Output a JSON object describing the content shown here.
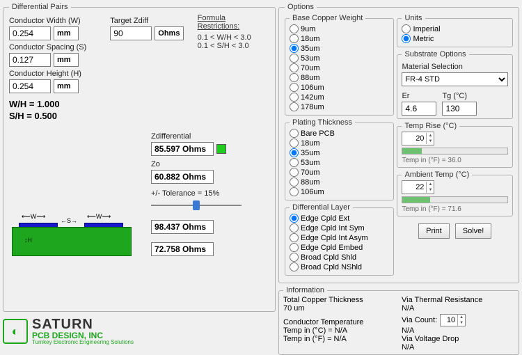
{
  "colors": {
    "indicator_ok": "#1fcc1f",
    "trace": "#1818c8",
    "substrate": "#1fa61f"
  },
  "diffpairs": {
    "legend": "Differential Pairs",
    "conductor_width": {
      "label": "Conductor Width (W)",
      "value": "0.254",
      "unit": "mm"
    },
    "target_zdiff": {
      "label": "Target Zdiff",
      "value": "90",
      "unit": "Ohms"
    },
    "conductor_spacing": {
      "label": "Conductor Spacing (S)",
      "value": "0.127",
      "unit": "mm"
    },
    "conductor_height": {
      "label": "Conductor Height (H)",
      "value": "0.254",
      "unit": "mm"
    },
    "wh_label": "W/H = 1.000",
    "sh_label": "S/H =  0.500",
    "restrictions": {
      "title": "Formula Restrictions:",
      "l1": "0.1 < W/H < 3.0",
      "l2": "0.1 < S/H < 3.0"
    },
    "zdiff": {
      "label": "Zdifferential",
      "value": "85.597 Ohms"
    },
    "zo": {
      "label": "Zo",
      "value": "60.882 Ohms"
    },
    "tol": {
      "label": "+/- Tolerance = 15%",
      "slider_pct": 50
    },
    "tol_hi": "98.437 Ohms",
    "tol_lo": "72.758 Ohms",
    "diagram_labels": {
      "w": "W",
      "s": "S",
      "h": "H"
    }
  },
  "options": {
    "legend": "Options",
    "bcw": {
      "legend": "Base Copper Weight",
      "items": [
        "9um",
        "18um",
        "35um",
        "53um",
        "70um",
        "88um",
        "106um",
        "142um",
        "178um"
      ],
      "selected": 2
    },
    "plating": {
      "legend": "Plating Thickness",
      "items": [
        "Bare PCB",
        "18um",
        "35um",
        "53um",
        "70um",
        "88um",
        "106um"
      ],
      "selected": 2
    },
    "dlayer": {
      "legend": "Differential Layer",
      "items": [
        "Edge Cpld Ext",
        "Edge Cpld Int Sym",
        "Edge Cpld Int Asym",
        "Edge Cpld Embed",
        "Broad Cpld Shld",
        "Broad Cpld NShld"
      ],
      "selected": 0
    },
    "units": {
      "legend": "Units",
      "items": [
        "Imperial",
        "Metric"
      ],
      "selected": 1
    },
    "substrate": {
      "legend": "Substrate Options",
      "mat_label": "Material Selection",
      "mat_value": "FR-4 STD",
      "er_label": "Er",
      "er_value": "4.6",
      "tg_label": "Tg (°C)",
      "tg_value": "130"
    },
    "temprise": {
      "legend": "Temp Rise (°C)",
      "value": "20",
      "progress_pct": 18,
      "fahr": "Temp in (°F) = 36.0"
    },
    "ambient": {
      "legend": "Ambient Temp (°C)",
      "value": "22",
      "progress_pct": 26,
      "fahr": "Temp in (°F) = 71.6"
    },
    "print": "Print",
    "solve": "Solve!"
  },
  "info": {
    "legend": "Information",
    "tct_label": "Total Copper Thickness",
    "tct_value": "70 um",
    "ct_label": "Conductor Temperature",
    "ct_c": "Temp in (°C) = N/A",
    "ct_f": "Temp in (°F) = N/A",
    "vtr_label": "Via Thermal Resistance",
    "vtr_value": "N/A",
    "vc_label": "Via Count:",
    "vc_value": "10",
    "vc_na": "N/A",
    "vvd_label": "Via Voltage Drop",
    "vvd_value": "N/A"
  },
  "logo": {
    "t1": "SATURN",
    "t2": "PCB DESIGN, INC",
    "t3": "Turnkey Electronic Engineering Solutions"
  }
}
